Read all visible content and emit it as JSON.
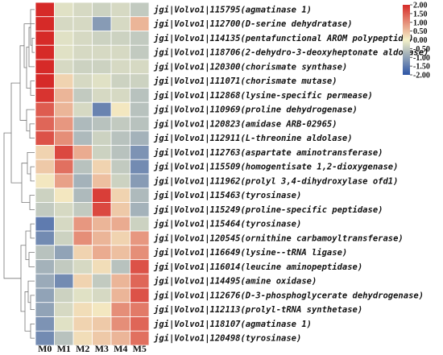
{
  "chart_data": {
    "type": "heatmap",
    "title": "",
    "xlabel": "",
    "ylabel": "",
    "columns": [
      "M0",
      "M1",
      "M2",
      "M3",
      "M4",
      "M5"
    ],
    "rows": [
      "jgi|Volvo1|115795(agmatinase 1)",
      "jgi|Volvo1|112700(D-serine dehydratase)",
      "jgi|Volvo1|114135(pentafunctional AROM polypeptide)",
      "jgi|Volvo1|118706(2-dehydro-3-deoxyheptonate aldolase)",
      "jgi|Volvo1|120300(chorismate synthase)",
      "jgi|Volvo1|111071(chorismate mutase)",
      "jgi|Volvo1|112868(lysine-specific permease)",
      "jgi|Volvo1|110969(proline dehydrogenase)",
      "jgi|Volvo1|120823(amidase ARB-02965)",
      "jgi|Volvo1|112911(L-threonine aldolase)",
      "jgi|Volvo1|112763(aspartate aminotransferase)",
      "jgi|Volvo1|115509(homogentisate 1,2-dioxygenase)",
      "jgi|Volvo1|111962(prolyl 3,4-dihydroxylase ofd1)",
      "jgi|Volvo1|115463(tyrosinase)",
      "jgi|Volvo1|115249(proline-specific peptidase)",
      "jgi|Volvo1|115464(tyrosinase)",
      "jgi|Volvo1|120545(ornithine carbamoyltransferase)",
      "jgi|Volvo1|116649(lysine--tRNA ligase)",
      "jgi|Volvo1|116014(leucine aminopeptidase)",
      "jgi|Volvo1|114495(amine oxidase)",
      "jgi|Volvo1|112676(D-3-phosphoglycerate dehydrogenase)",
      "jgi|Volvo1|112113(prolyl-tRNA synthetase)",
      "jgi|Volvo1|118107(agmatinase 1)",
      "jgi|Volvo1|120498(tyrosinase)"
    ],
    "values": [
      [
        2.0,
        -0.2,
        -0.3,
        -0.4,
        -0.3,
        -0.5
      ],
      [
        2.0,
        -0.3,
        -0.3,
        -1.1,
        -0.3,
        0.6
      ],
      [
        2.0,
        -0.2,
        -0.3,
        -0.4,
        -0.4,
        -0.5
      ],
      [
        2.0,
        -0.2,
        -0.3,
        -0.3,
        -0.3,
        -0.5
      ],
      [
        2.0,
        -0.3,
        -0.4,
        -0.4,
        -0.3,
        -0.3
      ],
      [
        2.0,
        0.3,
        -0.3,
        -0.2,
        -0.4,
        -0.4
      ],
      [
        1.9,
        0.6,
        -0.5,
        -0.3,
        -0.3,
        -0.6
      ],
      [
        1.5,
        0.6,
        -0.3,
        -1.4,
        0.1,
        -0.6
      ],
      [
        1.4,
        0.9,
        -0.7,
        -0.6,
        -0.5,
        -0.6
      ],
      [
        1.6,
        1.0,
        -0.7,
        -0.4,
        -0.6,
        -0.8
      ],
      [
        0.3,
        1.7,
        0.7,
        -0.4,
        -0.6,
        -1.2
      ],
      [
        0.4,
        1.3,
        -0.6,
        0.3,
        -0.5,
        -1.3
      ],
      [
        0.1,
        0.8,
        -0.8,
        0.5,
        -0.4,
        -1.1
      ],
      [
        -0.4,
        0.1,
        -0.7,
        1.8,
        0.3,
        -0.7
      ],
      [
        -0.5,
        -0.3,
        -0.5,
        1.7,
        0.4,
        -0.8
      ],
      [
        -1.5,
        -0.3,
        0.9,
        0.6,
        0.7,
        -0.4
      ],
      [
        -1.3,
        -0.4,
        1.0,
        0.6,
        0.3,
        0.9
      ],
      [
        -0.6,
        -1.0,
        0.3,
        0.7,
        0.5,
        1.0
      ],
      [
        -0.8,
        -0.5,
        -0.3,
        0.2,
        -0.6,
        1.6
      ],
      [
        -0.9,
        -1.3,
        0.3,
        -0.5,
        0.6,
        1.4
      ],
      [
        -1.0,
        -0.4,
        -0.2,
        -0.3,
        0.6,
        1.6
      ],
      [
        -1.0,
        -0.3,
        0.2,
        0.1,
        1.0,
        1.2
      ],
      [
        -1.2,
        -0.2,
        0.3,
        0.4,
        1.0,
        1.4
      ],
      [
        -1.3,
        -0.6,
        0.2,
        0.4,
        0.6,
        1.3
      ]
    ],
    "color_scale": {
      "min": -2.0,
      "max": 2.0,
      "colors": [
        "#2d54a6",
        "#f4f1c8",
        "#d62a28"
      ],
      "ticks": [
        2.0,
        1.5,
        1.0,
        0.5,
        0.0,
        -0.5,
        -1.0,
        -1.5,
        -2.0
      ],
      "tick_labels": [
        "2.00",
        "1.50",
        "1.00",
        "0.50",
        "0.00",
        "-0.50",
        "-1.00",
        "-1.50",
        "-2.00"
      ],
      "placement": "top-right"
    },
    "row_dendrogram": true
  }
}
